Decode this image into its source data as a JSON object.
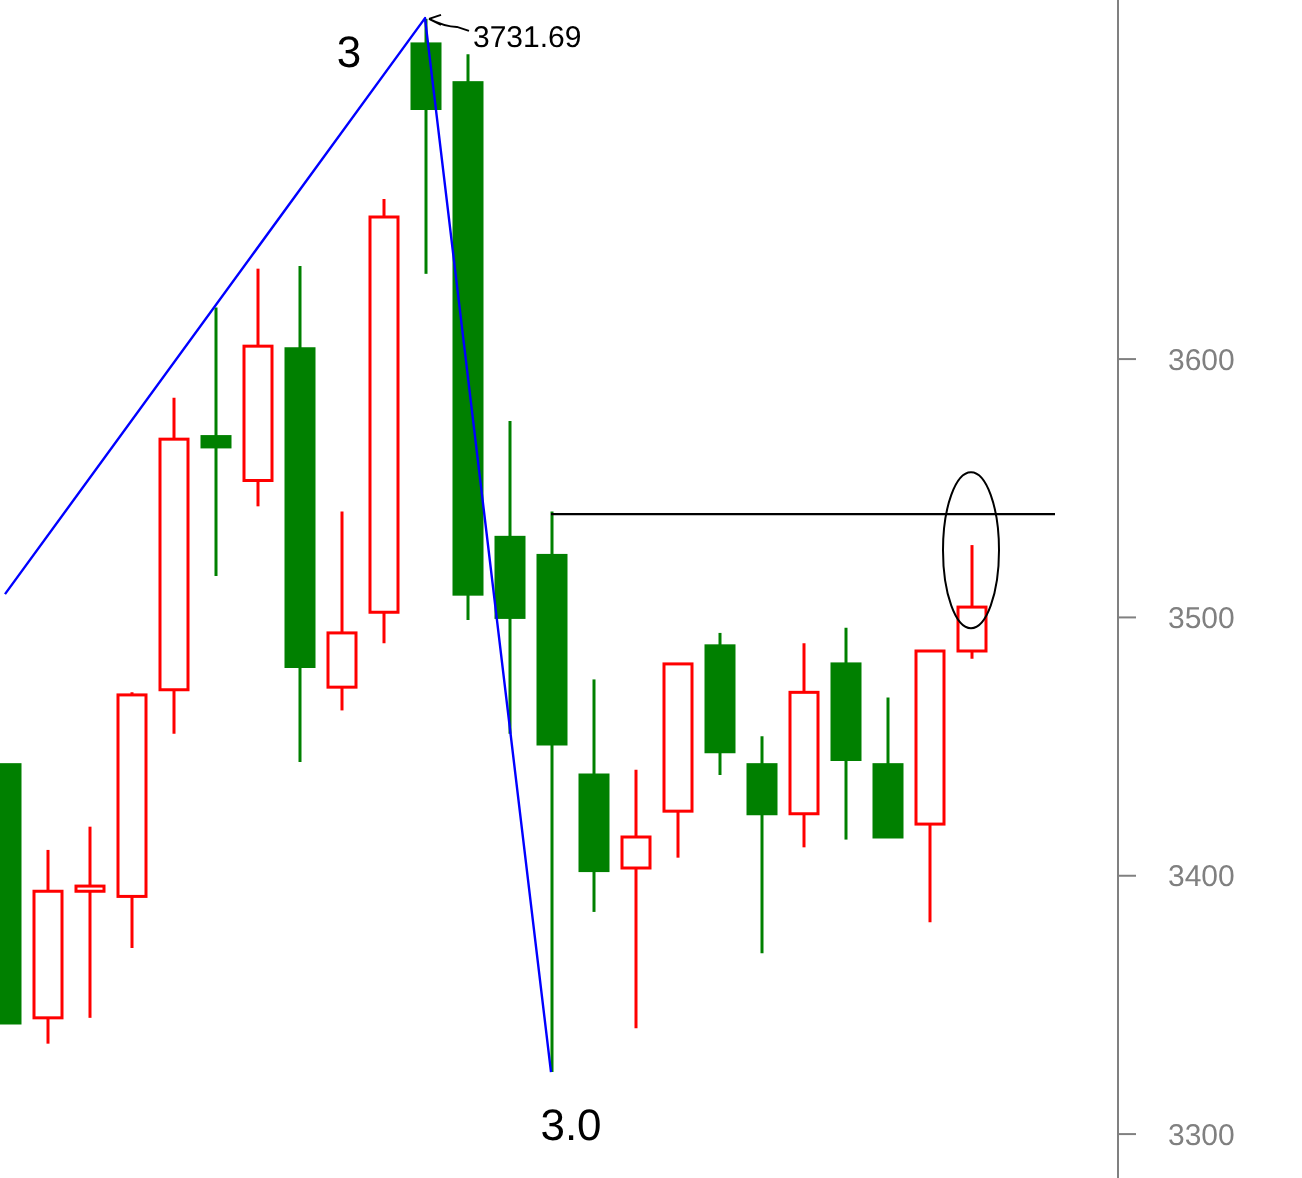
{
  "chart_data": {
    "type": "candlestick",
    "categories": [
      null,
      null,
      null,
      null,
      null,
      null,
      null,
      null,
      null,
      null,
      null,
      null,
      null,
      null,
      null,
      null,
      null,
      null,
      null,
      null,
      null,
      null,
      null,
      null,
      null,
      null,
      null
    ],
    "ohlc": [
      [
        3443,
        3443,
        3343,
        3343
      ],
      [
        3345,
        3410,
        3335,
        3394
      ],
      [
        3394,
        3419,
        3345,
        3396
      ],
      [
        3392,
        3471,
        3372,
        3470
      ],
      [
        3472,
        3585,
        3455,
        3569
      ],
      [
        3570,
        3620,
        3516,
        3566
      ],
      [
        3553,
        3635,
        3543,
        3605
      ],
      [
        3604,
        3636,
        3444,
        3481
      ],
      [
        3473,
        3541,
        3464,
        3494
      ],
      [
        3502,
        3662,
        3490,
        3655
      ],
      [
        3722,
        3731.69,
        3633,
        3697
      ],
      [
        3707,
        3718,
        3499,
        3509
      ],
      [
        3531,
        3576,
        3455,
        3500
      ],
      [
        3524,
        3541,
        3324,
        3451
      ],
      [
        3439,
        3476,
        3386,
        3402
      ],
      [
        3403,
        3441,
        3341,
        3415
      ],
      [
        3425,
        3482,
        3407,
        3482
      ],
      [
        3489,
        3494,
        3439,
        3448
      ],
      [
        3443,
        3454,
        3370,
        3424
      ],
      [
        3424,
        3490,
        3411,
        3471
      ],
      [
        3482,
        3496,
        3414,
        3445
      ],
      [
        3443,
        3469,
        3415,
        3415
      ],
      [
        3420,
        3487,
        3382,
        3487
      ],
      [
        3487,
        3528,
        3484,
        3504
      ],
      null,
      null,
      null
    ],
    "colors": [
      "#008000",
      "#ff0000",
      "#ff0000",
      "#ff0000",
      "#ff0000",
      "#008000",
      "#ff0000",
      "#008000",
      "#ff0000",
      "#ff0000",
      "#008000",
      "#008000",
      "#008000",
      "#008000",
      "#008000",
      "#ff0000",
      "#ff0000",
      "#008000",
      "#008000",
      "#ff0000",
      "#008000",
      "#008000",
      "#ff0000",
      "#ff0000",
      null,
      null,
      null
    ],
    "series": [
      {
        "type": "line",
        "color": "#0000ff",
        "values": [
          3509,
          null,
          null,
          null,
          null,
          null,
          null,
          null,
          null,
          null,
          3732,
          null,
          null,
          3324,
          null,
          null,
          null,
          null,
          null,
          null,
          null,
          null,
          null,
          null,
          null,
          null,
          null
        ]
      },
      {
        "type": "line",
        "color": "#000000",
        "values": [
          null,
          null,
          null,
          null,
          null,
          null,
          null,
          null,
          null,
          null,
          null,
          null,
          null,
          3540,
          3540,
          3540,
          3540,
          3540,
          3540,
          3540,
          3540,
          3540,
          3540,
          3540,
          3540,
          3540,
          null
        ]
      }
    ],
    "annotations": [
      "3",
      "3731.69",
      "3.0"
    ],
    "ylim": [
      3283,
      3739
    ],
    "yticks": [
      3300,
      3400,
      3500,
      3600
    ],
    "tick_labels": "y"
  }
}
